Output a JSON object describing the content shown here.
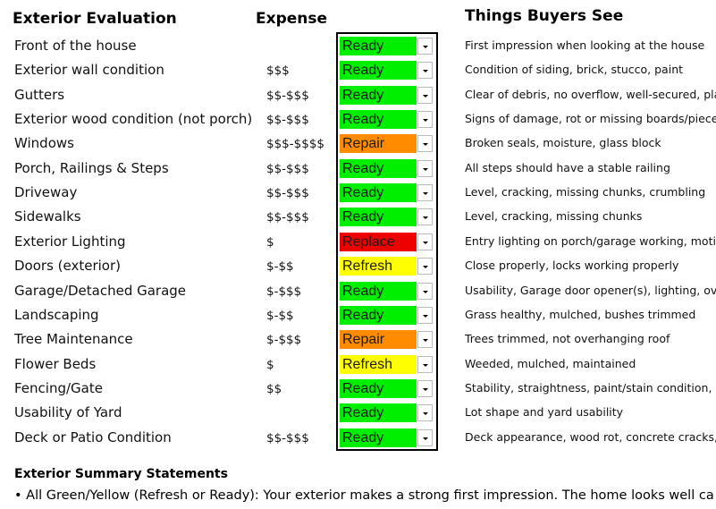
{
  "header": {
    "evaluation": "Exterior Evaluation",
    "expense": "Expense",
    "notes": "Things Buyers See"
  },
  "status_colors": {
    "Ready": "#00ee00",
    "Repair": "#ff8c00",
    "Replace": "#ee0000",
    "Refresh": "#ffff00"
  },
  "table": {
    "rows": [
      {
        "item": "Front of the house",
        "status": "Ready",
        "note": "First impression when looking at the house"
      },
      {
        "item": "Exterior wall condition",
        "expense": "$$$",
        "status": "Ready",
        "note": "Condition of siding, brick, stucco, paint"
      },
      {
        "item": "Gutters",
        "expense": "$$-$$$",
        "status": "Ready",
        "note": "Clear of debris, no overflow, well-secured, plan"
      },
      {
        "item": "Exterior wood condition (not porch)",
        "expense": "$$-$$$",
        "status": "Ready",
        "note": "Signs of damage, rot or missing boards/pieces"
      },
      {
        "item": "Windows",
        "expense": "$$$-$$$$",
        "status": "Repair",
        "note": "Broken seals, moisture, glass block"
      },
      {
        "item": "Porch, Railings & Steps",
        "expense": "$$-$$$",
        "status": "Ready",
        "note": "All steps should have a stable railing"
      },
      {
        "item": "Driveway",
        "expense": "$$-$$$",
        "status": "Ready",
        "note": "Level, cracking, missing chunks, crumbling"
      },
      {
        "item": "Sidewalks",
        "expense": "$$-$$$",
        "status": "Ready",
        "note": "Level, cracking, missing chunks"
      },
      {
        "item": "Exterior Lighting",
        "expense": "$",
        "status": "Replace",
        "note": "Entry lighting on porch/garage working, motion"
      },
      {
        "item": "Doors (exterior)",
        "expense": "$-$$",
        "status": "Refresh",
        "note": "Close properly, locks working properly"
      },
      {
        "item": "Garage/Detached Garage",
        "expense": "$-$$$",
        "status": "Ready",
        "note": "Usability, Garage door opener(s), lighting, over"
      },
      {
        "item": "Landscaping",
        "expense": "$-$$",
        "status": "Ready",
        "note": "Grass healthy, mulched, bushes trimmed"
      },
      {
        "item": "Tree Maintenance",
        "expense": "$-$$$",
        "status": "Repair",
        "note": "Trees trimmed, not overhanging roof"
      },
      {
        "item": "Flower Beds",
        "expense": "$",
        "status": "Refresh",
        "note": "Weeded, mulched, maintained"
      },
      {
        "item": "Fencing/Gate",
        "expense": "$$",
        "status": "Ready",
        "note": "Stability, straightness, paint/stain condition, ga"
      },
      {
        "item": "Usability of Yard",
        "status": "Ready",
        "note": "Lot shape and yard usability"
      },
      {
        "item": "Deck or Patio Condition",
        "expense": "$$-$$$",
        "status": "Ready",
        "note": "Deck appearance, wood rot, concrete cracks, l"
      }
    ]
  },
  "summary": {
    "title": "Exterior Summary Statements",
    "bullet": "• All Green/Yellow (Refresh or Ready): Your exterior makes a strong first impression. The home looks well ca"
  }
}
